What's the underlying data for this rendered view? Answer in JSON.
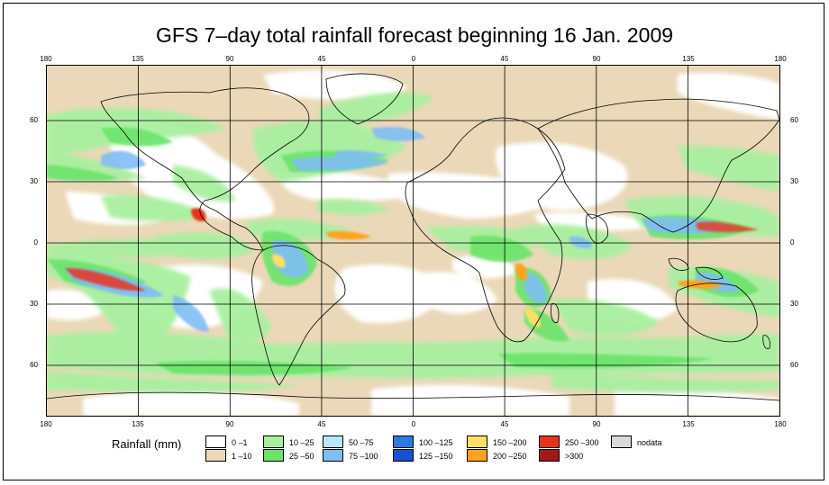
{
  "title": "GFS 7–day total rainfall forecast beginning 16 Jan. 2009",
  "axes": {
    "lon_labels": [
      "180",
      "135",
      "90",
      "45",
      "0",
      "45",
      "90",
      "135",
      "180"
    ],
    "lat_labels": [
      "60",
      "30",
      "0",
      "30",
      "60"
    ]
  },
  "legend": {
    "title": "Rainfall (mm)",
    "bins": [
      {
        "label": "0 –1",
        "color": "#ffffff"
      },
      {
        "label": "1 –10",
        "color": "#ead8b8"
      },
      {
        "label": "10 –25",
        "color": "#a8f0a0"
      },
      {
        "label": "25 –50",
        "color": "#6be46b"
      },
      {
        "label": "50 –75",
        "color": "#b6e8fa"
      },
      {
        "label": "75 –100",
        "color": "#7fbef5"
      },
      {
        "label": "100 –125",
        "color": "#2a7ae4"
      },
      {
        "label": "125 –150",
        "color": "#1a4fd1"
      },
      {
        "label": "150 –200",
        "color": "#ffe066"
      },
      {
        "label": "200 –250",
        "color": "#ffa21a"
      },
      {
        "label": "250 –300",
        "color": "#e8331c"
      },
      {
        "label": ">300",
        "color": "#a01818"
      },
      {
        "label": "nodata",
        "color": "#d9d9d9"
      }
    ]
  }
}
